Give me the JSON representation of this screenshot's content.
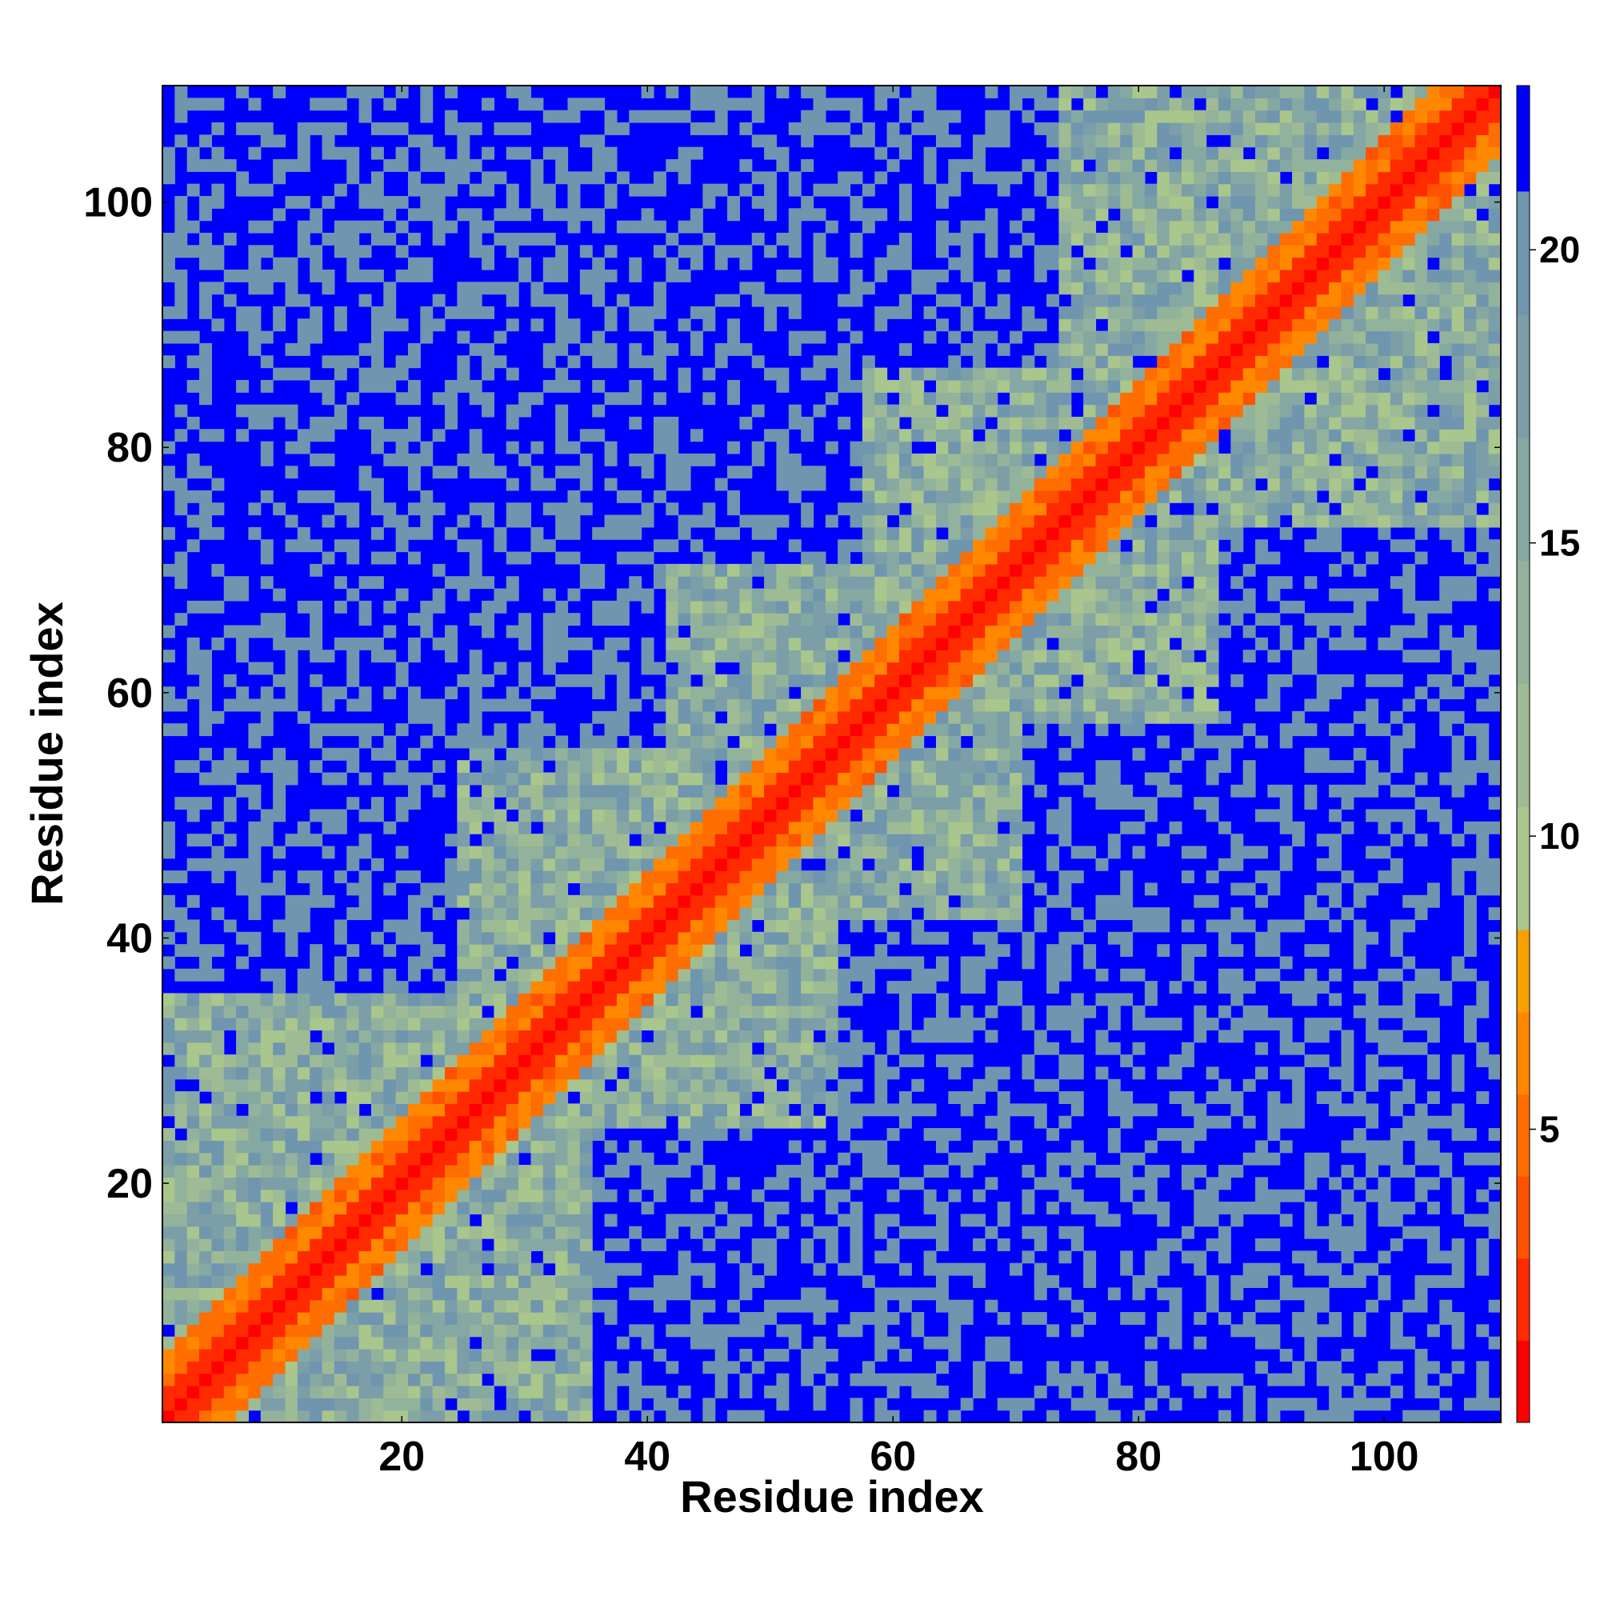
{
  "chart_data": {
    "type": "heatmap",
    "title": "",
    "xlabel": "Residue index",
    "ylabel": "Residue index",
    "n_residues": 109,
    "xlim": [
      1,
      109
    ],
    "ylim": [
      1,
      109
    ],
    "x_ticks": [
      20,
      40,
      60,
      80,
      100
    ],
    "y_ticks": [
      20,
      40,
      60,
      80,
      100
    ],
    "colorbar": {
      "ticks": [
        5,
        10,
        15,
        20
      ],
      "range": [
        0,
        22.8
      ],
      "bins": [
        {
          "from": 0.0,
          "to": 1.4,
          "color": "#ff0000"
        },
        {
          "from": 1.4,
          "to": 2.8,
          "color": "#ff2a00"
        },
        {
          "from": 2.8,
          "to": 4.2,
          "color": "#ff5200"
        },
        {
          "from": 4.2,
          "to": 5.6,
          "color": "#ff6e00"
        },
        {
          "from": 5.6,
          "to": 7.0,
          "color": "#ff8800"
        },
        {
          "from": 7.0,
          "to": 8.4,
          "color": "#f7a000"
        },
        {
          "from": 8.4,
          "to": 10.5,
          "color": "#a9c68c"
        },
        {
          "from": 10.5,
          "to": 12.6,
          "color": "#9ebb94"
        },
        {
          "from": 12.6,
          "to": 14.7,
          "color": "#93b29c"
        },
        {
          "from": 14.7,
          "to": 16.8,
          "color": "#86a8a3"
        },
        {
          "from": 16.8,
          "to": 18.9,
          "color": "#7b9ea8"
        },
        {
          "from": 18.9,
          "to": 21.0,
          "color": "#6f95af"
        },
        {
          "from": 21.0,
          "to": 22.8,
          "color": "#0000ff"
        }
      ]
    },
    "matrix_encoding": "symmetric distance matrix; cells beyond cutoff drawn solid blue",
    "cutoff": 21.0,
    "colors": {
      "far": "#0000ff",
      "diagonal": "#ff0000"
    },
    "blocks": [
      {
        "res_from": 1,
        "res_to": 35
      },
      {
        "res_from": 25,
        "res_to": 55
      },
      {
        "res_from": 42,
        "res_to": 70
      },
      {
        "res_from": 58,
        "res_to": 86
      },
      {
        "res_from": 74,
        "res_to": 109
      }
    ]
  }
}
